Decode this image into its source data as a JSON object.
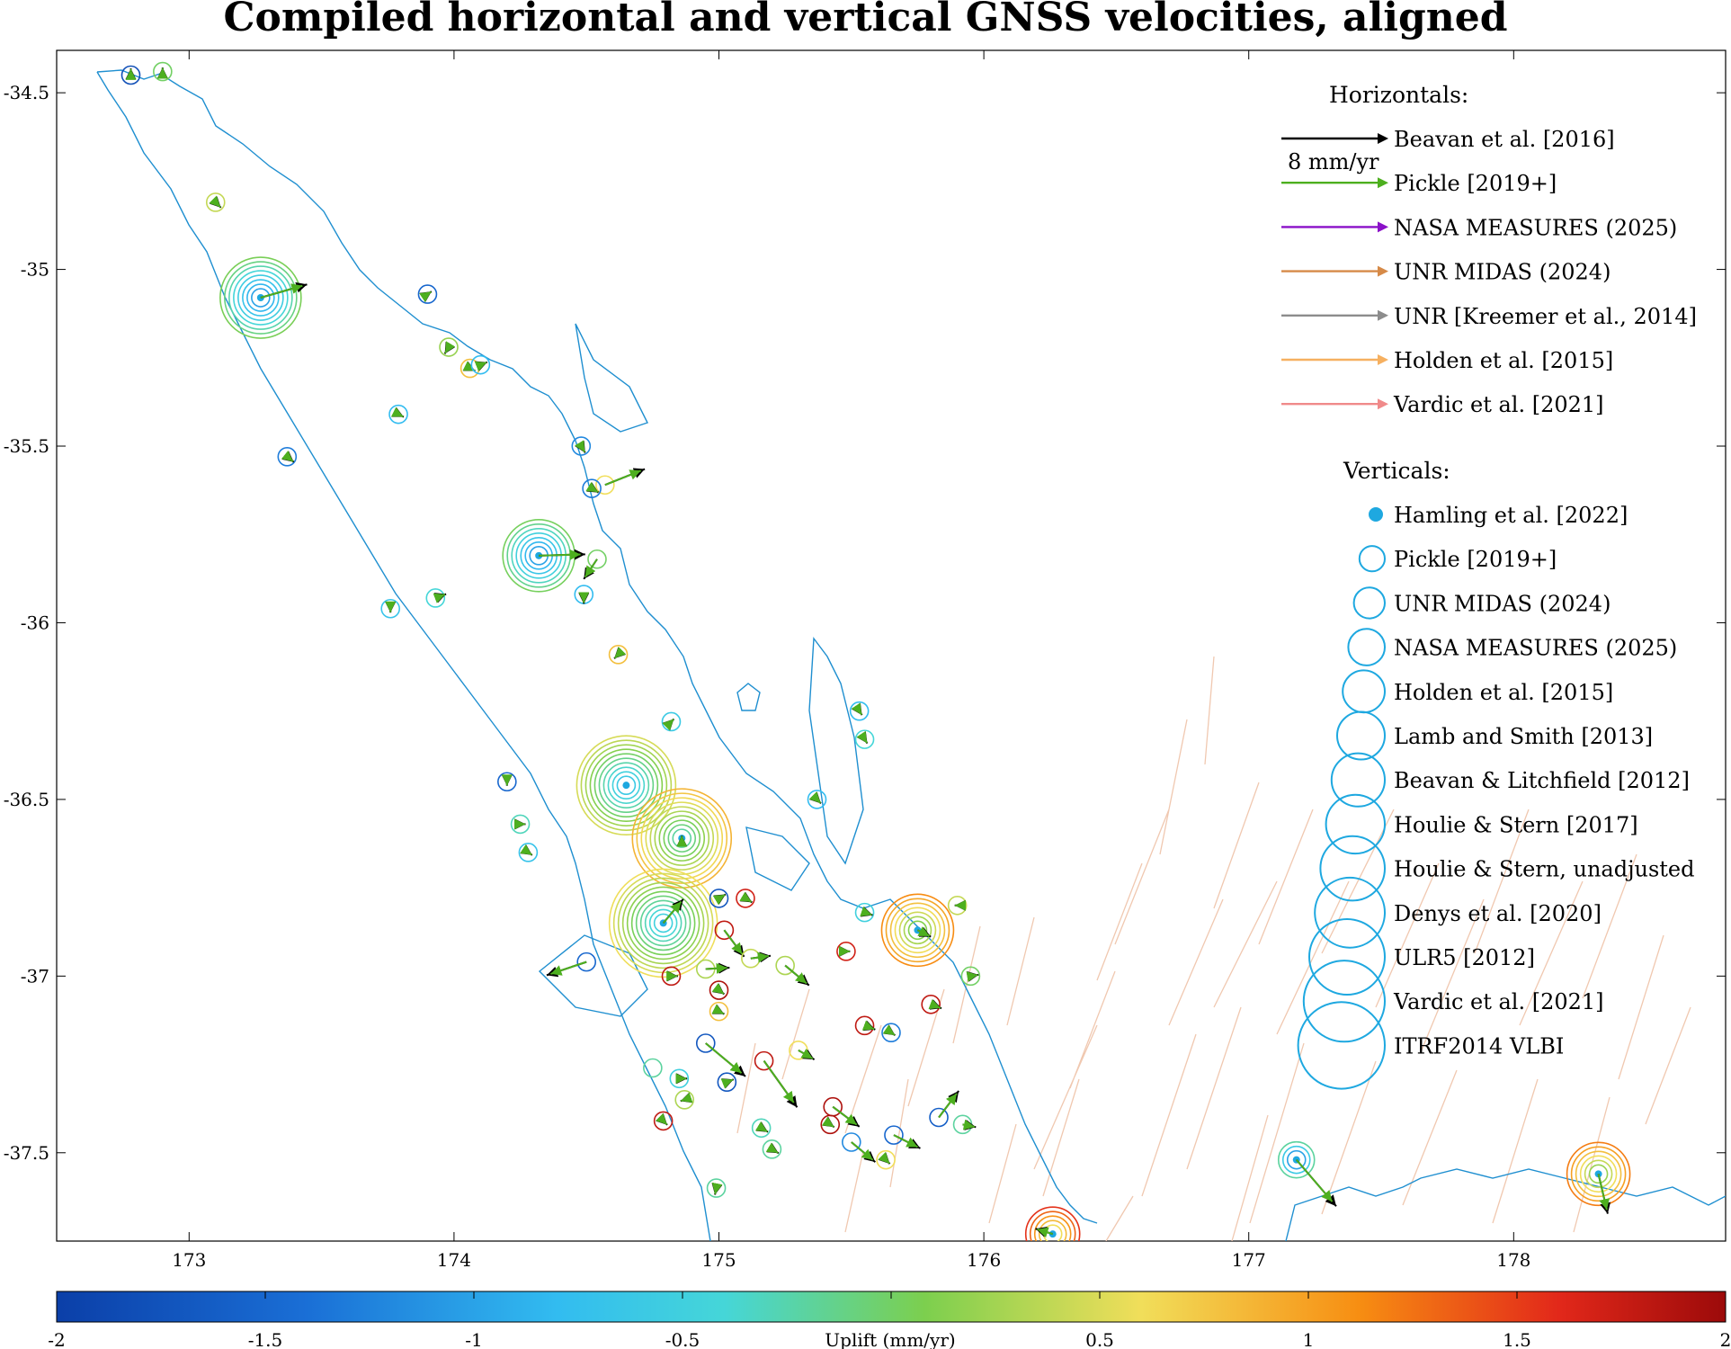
{
  "title": "Compiled horizontal and vertical GNSS velocities, aligned",
  "axes": {
    "lon_range": [
      172.5,
      178.8
    ],
    "lat_range": [
      -37.75,
      -34.38
    ],
    "x_ticks": [
      "173",
      "174",
      "175",
      "176",
      "177",
      "178"
    ],
    "y_ticks": [
      "-34.5",
      "-35",
      "-35.5",
      "-36",
      "-36.5",
      "-37",
      "-37.5"
    ]
  },
  "legend": {
    "horizontals_title": "Horizontals:",
    "scale_label": "8 mm/yr",
    "horizontals": [
      {
        "label": "Beavan et al. [2016]",
        "color": "#000000"
      },
      {
        "label": "Pickle [2019+]",
        "color": "#4daf1f"
      },
      {
        "label": "NASA MEASURES (2025)",
        "color": "#8a10c8"
      },
      {
        "label": "UNR MIDAS (2024)",
        "color": "#d68a48"
      },
      {
        "label": "UNR [Kreemer et al., 2014]",
        "color": "#8c8c8c"
      },
      {
        "label": "Holden et al. [2015]",
        "color": "#f6b060"
      },
      {
        "label": "Vardic et al. [2021]",
        "color": "#f08a8a"
      }
    ],
    "verticals_title": "Verticals:",
    "verticals": [
      {
        "label": "Hamling et al. [2022]",
        "style": "dot"
      },
      {
        "label": "Pickle [2019+]",
        "style": "circle"
      },
      {
        "label": "UNR MIDAS (2024)",
        "style": "circle"
      },
      {
        "label": "NASA MEASURES (2025)",
        "style": "circle"
      },
      {
        "label": "Holden et al. [2015]",
        "style": "circle"
      },
      {
        "label": "Lamb and Smith [2013]",
        "style": "circle"
      },
      {
        "label": "Beavan & Litchfield [2012]",
        "style": "circle"
      },
      {
        "label": "Houlie & Stern [2017]",
        "style": "circle"
      },
      {
        "label": "Houlie & Stern, unadjusted",
        "style": "circle"
      },
      {
        "label": "Denys et al. [2020]",
        "style": "circle"
      },
      {
        "label": "ULR5 [2012]",
        "style": "circle"
      },
      {
        "label": "Vardic et al. [2021]",
        "style": "circle"
      },
      {
        "label": "ITRF2014 VLBI",
        "style": "circle"
      }
    ],
    "vertical_color": "#1ea8e0"
  },
  "colorbar": {
    "label": "Uplift (mm/yr)",
    "range": [
      -2,
      2
    ],
    "ticks": [
      "-2",
      "-1.5",
      "-1",
      "-0.5",
      "0",
      "0.5",
      "1",
      "1.5",
      "2"
    ]
  },
  "colors": {
    "coastline": "#1f8fd0",
    "faults": "#f0c8b0"
  },
  "stations": [
    {
      "lon": 172.78,
      "lat": -34.45,
      "uplift": -1.8,
      "e": 0.0,
      "n": 0.5,
      "ring": 1
    },
    {
      "lon": 172.9,
      "lat": -34.44,
      "uplift": 0.0,
      "e": 0.0,
      "n": 0.3,
      "ring": 1
    },
    {
      "lon": 173.1,
      "lat": -34.81,
      "uplift": 0.4,
      "e": 0.4,
      "n": -0.4,
      "ring": 1
    },
    {
      "lon": 173.27,
      "lat": -35.08,
      "uplift": -1.0,
      "e": 3.5,
      "n": 1.0,
      "ring": 8
    },
    {
      "lon": 173.9,
      "lat": -35.07,
      "uplift": -1.5,
      "e": 0.3,
      "n": 0.2,
      "ring": 1
    },
    {
      "lon": 173.98,
      "lat": -35.22,
      "uplift": 0.2,
      "e": -0.3,
      "n": -0.5,
      "ring": 1
    },
    {
      "lon": 174.06,
      "lat": -35.28,
      "uplift": 0.8,
      "e": 0.4,
      "n": -0.2,
      "ring": 1
    },
    {
      "lon": 174.1,
      "lat": -35.27,
      "uplift": -0.8,
      "e": 0.5,
      "n": 0.2,
      "ring": 1
    },
    {
      "lon": 173.79,
      "lat": -35.41,
      "uplift": -0.8,
      "e": 0.4,
      "n": -0.2,
      "ring": 1
    },
    {
      "lon": 173.37,
      "lat": -35.53,
      "uplift": -1.3,
      "e": 0.5,
      "n": -0.4,
      "ring": 1
    },
    {
      "lon": 174.48,
      "lat": -35.5,
      "uplift": -1.2,
      "e": 0.3,
      "n": -0.5,
      "ring": 1
    },
    {
      "lon": 174.57,
      "lat": -35.61,
      "uplift": 0.6,
      "e": 3.0,
      "n": 1.2,
      "ring": 1
    },
    {
      "lon": 174.52,
      "lat": -35.62,
      "uplift": -1.3,
      "e": 0.5,
      "n": -0.3,
      "ring": 1
    },
    {
      "lon": 174.32,
      "lat": -35.81,
      "uplift": -1.0,
      "e": 3.5,
      "n": 0.1,
      "ring": 7
    },
    {
      "lon": 174.54,
      "lat": -35.82,
      "uplift": 0.0,
      "e": -1.0,
      "n": -1.5,
      "ring": 1
    },
    {
      "lon": 174.49,
      "lat": -35.92,
      "uplift": -0.8,
      "e": 0.0,
      "n": -0.7,
      "ring": 1
    },
    {
      "lon": 173.76,
      "lat": -35.96,
      "uplift": -0.7,
      "e": 0.0,
      "n": -0.3,
      "ring": 1
    },
    {
      "lon": 173.93,
      "lat": -35.93,
      "uplift": -0.4,
      "e": 0.8,
      "n": 0.3,
      "ring": 1
    },
    {
      "lon": 174.62,
      "lat": -36.09,
      "uplift": 0.8,
      "e": -0.3,
      "n": -0.3,
      "ring": 1
    },
    {
      "lon": 174.82,
      "lat": -36.28,
      "uplift": -0.6,
      "e": 0.2,
      "n": 0.2,
      "ring": 1
    },
    {
      "lon": 174.65,
      "lat": -36.46,
      "uplift": -0.6,
      "e": 0.0,
      "n": 0.0,
      "ring": 10
    },
    {
      "lon": 174.86,
      "lat": -36.61,
      "uplift": -0.2,
      "e": 0.0,
      "n": 0.2,
      "ring": 10
    },
    {
      "lon": 174.79,
      "lat": -36.85,
      "uplift": -0.5,
      "e": 1.5,
      "n": 1.8,
      "ring": 11
    },
    {
      "lon": 174.5,
      "lat": -36.96,
      "uplift": -1.5,
      "e": -3.0,
      "n": -1.0,
      "ring": 1
    },
    {
      "lon": 174.2,
      "lat": -36.45,
      "uplift": -1.5,
      "e": 0.0,
      "n": -0.3,
      "ring": 1
    },
    {
      "lon": 174.25,
      "lat": -36.57,
      "uplift": -0.3,
      "e": 0.4,
      "n": 0.0,
      "ring": 1
    },
    {
      "lon": 174.28,
      "lat": -36.65,
      "uplift": -0.7,
      "e": 0.3,
      "n": -0.2,
      "ring": 1
    },
    {
      "lon": 175.53,
      "lat": -36.25,
      "uplift": -0.8,
      "e": 0.2,
      "n": -0.3,
      "ring": 1
    },
    {
      "lon": 175.55,
      "lat": -36.33,
      "uplift": -0.4,
      "e": 0.2,
      "n": -0.3,
      "ring": 1
    },
    {
      "lon": 175.37,
      "lat": -36.5,
      "uplift": -0.8,
      "e": 0.3,
      "n": -0.3,
      "ring": 1
    },
    {
      "lon": 175.75,
      "lat": -36.87,
      "uplift": 0.1,
      "e": 1.0,
      "n": -0.5,
      "ring": 7
    },
    {
      "lon": 175.55,
      "lat": -36.82,
      "uplift": -0.5,
      "e": 0.6,
      "n": -0.2,
      "ring": 1
    },
    {
      "lon": 175.9,
      "lat": -36.8,
      "uplift": 0.4,
      "e": -0.2,
      "n": 0.0,
      "ring": 1
    },
    {
      "lon": 175.95,
      "lat": -37.0,
      "uplift": 0.0,
      "e": 0.6,
      "n": 0.1,
      "ring": 1
    },
    {
      "lon": 175.8,
      "lat": -37.08,
      "uplift": 1.8,
      "e": 0.8,
      "n": -0.3,
      "ring": 1
    },
    {
      "lon": 175.48,
      "lat": -36.93,
      "uplift": 1.7,
      "e": 0.3,
      "n": 0.0,
      "ring": 1
    },
    {
      "lon": 175.55,
      "lat": -37.14,
      "uplift": 1.8,
      "e": 0.8,
      "n": -0.3,
      "ring": 1
    },
    {
      "lon": 175.65,
      "lat": -37.16,
      "uplift": -1.3,
      "e": 0.3,
      "n": -0.2,
      "ring": 1
    },
    {
      "lon": 175.02,
      "lat": -36.87,
      "uplift": 1.8,
      "e": 1.5,
      "n": -2.0,
      "ring": 1
    },
    {
      "lon": 175.1,
      "lat": -36.78,
      "uplift": 1.7,
      "e": 0.5,
      "n": -0.3,
      "ring": 1
    },
    {
      "lon": 175.0,
      "lat": -36.78,
      "uplift": -1.7,
      "e": 0.5,
      "n": 0.3,
      "ring": 1
    },
    {
      "lon": 175.12,
      "lat": -36.95,
      "uplift": 0.4,
      "e": 1.5,
      "n": 0.2,
      "ring": 1
    },
    {
      "lon": 175.25,
      "lat": -36.97,
      "uplift": 0.3,
      "e": 1.8,
      "n": -1.5,
      "ring": 1
    },
    {
      "lon": 174.82,
      "lat": -37.0,
      "uplift": 1.8,
      "e": 0.5,
      "n": 0.0,
      "ring": 1
    },
    {
      "lon": 174.95,
      "lat": -36.98,
      "uplift": 0.3,
      "e": 1.8,
      "n": 0.1,
      "ring": 1
    },
    {
      "lon": 175.0,
      "lat": -37.04,
      "uplift": 1.9,
      "e": 0.4,
      "n": -0.3,
      "ring": 1
    },
    {
      "lon": 175.0,
      "lat": -37.1,
      "uplift": 0.8,
      "e": 0.4,
      "n": -0.2,
      "ring": 1
    },
    {
      "lon": 174.95,
      "lat": -37.19,
      "uplift": -1.7,
      "e": 3.0,
      "n": -2.5,
      "ring": 1
    },
    {
      "lon": 175.17,
      "lat": -37.24,
      "uplift": 1.8,
      "e": 2.5,
      "n": -3.5,
      "ring": 1
    },
    {
      "lon": 175.3,
      "lat": -37.21,
      "uplift": 0.6,
      "e": 1.2,
      "n": -0.7,
      "ring": 1
    },
    {
      "lon": 175.03,
      "lat": -37.3,
      "uplift": -1.7,
      "e": 0.5,
      "n": 0.2,
      "ring": 1
    },
    {
      "lon": 174.75,
      "lat": -37.26,
      "uplift": -0.2,
      "e": 0.0,
      "n": 0.0,
      "ring": 1
    },
    {
      "lon": 174.85,
      "lat": -37.29,
      "uplift": -0.5,
      "e": 0.6,
      "n": 0.0,
      "ring": 1
    },
    {
      "lon": 174.87,
      "lat": -37.35,
      "uplift": 0.3,
      "e": -0.3,
      "n": -0.1,
      "ring": 1
    },
    {
      "lon": 174.79,
      "lat": -37.41,
      "uplift": 1.8,
      "e": 0.3,
      "n": -0.3,
      "ring": 1
    },
    {
      "lon": 175.43,
      "lat": -37.37,
      "uplift": 1.9,
      "e": 2.0,
      "n": -1.5,
      "ring": 1
    },
    {
      "lon": 175.42,
      "lat": -37.42,
      "uplift": 1.9,
      "e": 0.3,
      "n": -0.2,
      "ring": 1
    },
    {
      "lon": 175.5,
      "lat": -37.47,
      "uplift": -1.2,
      "e": 1.8,
      "n": -1.5,
      "ring": 1
    },
    {
      "lon": 175.66,
      "lat": -37.45,
      "uplift": -1.5,
      "e": 2.0,
      "n": -1.0,
      "ring": 1
    },
    {
      "lon": 175.83,
      "lat": -37.4,
      "uplift": -1.6,
      "e": 1.5,
      "n": 2.0,
      "ring": 1
    },
    {
      "lon": 175.92,
      "lat": -37.42,
      "uplift": -0.2,
      "e": 1.0,
      "n": -0.2,
      "ring": 1
    },
    {
      "lon": 175.63,
      "lat": -37.52,
      "uplift": 0.6,
      "e": 0.3,
      "n": -0.3,
      "ring": 1
    },
    {
      "lon": 175.16,
      "lat": -37.43,
      "uplift": -0.3,
      "e": 0.5,
      "n": -0.3,
      "ring": 1
    },
    {
      "lon": 175.2,
      "lat": -37.49,
      "uplift": -0.2,
      "e": 0.5,
      "n": -0.3,
      "ring": 1
    },
    {
      "lon": 174.99,
      "lat": -37.6,
      "uplift": -0.2,
      "e": -0.1,
      "n": -0.5,
      "ring": 1
    },
    {
      "lon": 176.26,
      "lat": -37.73,
      "uplift": 0.6,
      "e": -1.3,
      "n": 0.4,
      "ring": 5
    },
    {
      "lon": 177.18,
      "lat": -37.52,
      "uplift": -1.0,
      "e": 3.0,
      "n": -3.5,
      "ring": 3
    },
    {
      "lon": 178.32,
      "lat": -37.56,
      "uplift": 0.2,
      "e": 0.7,
      "n": -3.0,
      "ring": 6
    }
  ]
}
